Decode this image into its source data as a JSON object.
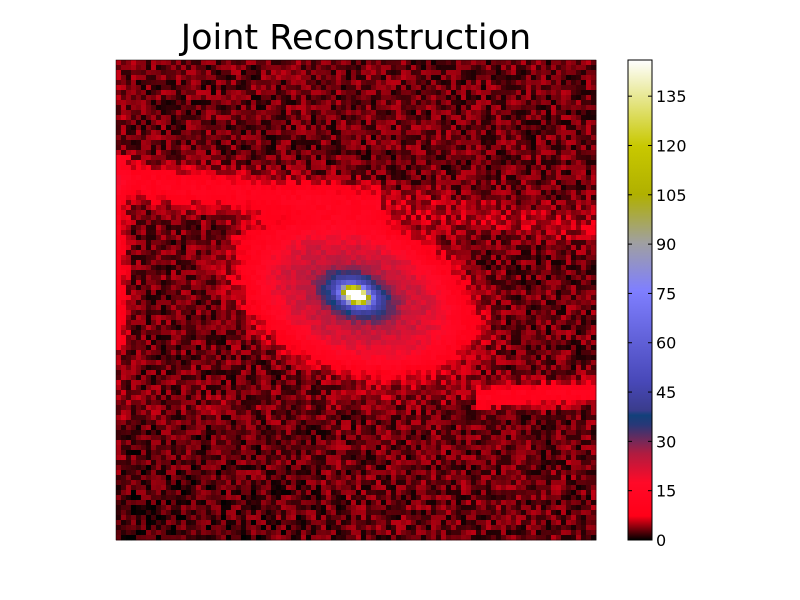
{
  "chart_data": {
    "type": "heatmap",
    "title": "Joint Reconstruction",
    "xlabel": "",
    "ylabel": "",
    "grid": false,
    "colormap": "gist_stern-like (black → red → navy → blue → gray → yellow → white)",
    "colorbar": {
      "position": "right",
      "min": 0,
      "max": 146,
      "ticks": [
        0,
        15,
        30,
        45,
        60,
        75,
        90,
        105,
        120,
        135
      ],
      "tick_labels": [
        "0",
        "15",
        "30",
        "45",
        "60",
        "75",
        "90",
        "105",
        "120",
        "135"
      ]
    },
    "grid_size": [
      96,
      96
    ],
    "features": {
      "background_level": 3,
      "galaxy_core_peak": 146,
      "core_position": [
        0.5,
        0.49
      ],
      "disk_level": 14,
      "disk_inclination_deg": -20
    }
  },
  "colors": {
    "stops": [
      {
        "v": 0.0,
        "c": "#000000"
      },
      {
        "v": 0.05,
        "c": "#ff0018"
      },
      {
        "v": 0.12,
        "c": "#ff0a28"
      },
      {
        "v": 0.18,
        "c": "#b01c40"
      },
      {
        "v": 0.24,
        "c": "#283878"
      },
      {
        "v": 0.26,
        "c": "#12407a"
      },
      {
        "v": 0.27,
        "c": "#3a3c8c"
      },
      {
        "v": 0.33,
        "c": "#4848b8"
      },
      {
        "v": 0.52,
        "c": "#7f7fff"
      },
      {
        "v": 0.62,
        "c": "#a0a0a0"
      },
      {
        "v": 0.72,
        "c": "#b0b000"
      },
      {
        "v": 0.82,
        "c": "#c8c800"
      },
      {
        "v": 1.0,
        "c": "#ffffff"
      }
    ]
  }
}
